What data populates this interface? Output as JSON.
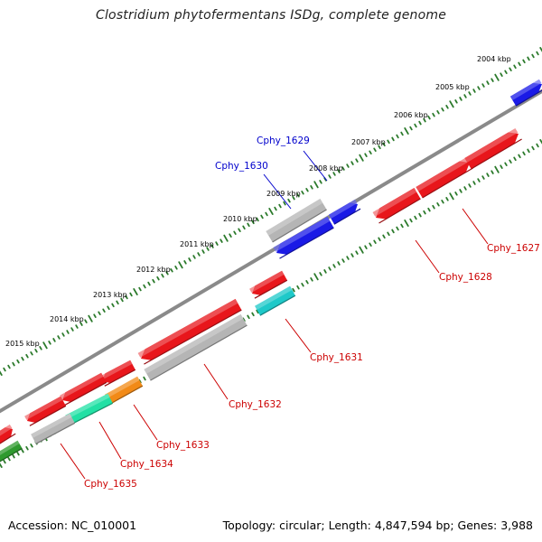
{
  "title": "Clostridium phytofermentans ISDg, complete genome",
  "footer": {
    "accession": "Accession: NC_010001",
    "summary": "Topology: circular; Length: 4,847,594 bp; Genes: 3,988"
  },
  "kbp_ticks": [
    "2004 kbp",
    "2005 kbp",
    "2006 kbp",
    "2007 kbp",
    "2008 kbp",
    "2009 kbp",
    "2010 kbp",
    "2011 kbp",
    "2012 kbp",
    "2013 kbp",
    "2014 kbp",
    "2015 kbp"
  ],
  "gene_labels": [
    "Cphy_1627",
    "Cphy_1628",
    "Cphy_1629",
    "Cphy_1630",
    "Cphy_1631",
    "Cphy_1632",
    "Cphy_1633",
    "Cphy_1634",
    "Cphy_1635"
  ],
  "colors": {
    "red": "#e8161b",
    "blue": "#1a1ae6",
    "grey": "#b5b5b5",
    "cyan": "#1ec9c9",
    "orange": "#f28a17",
    "teal": "#22e0a4",
    "green": "#2f9a2f",
    "backbone": "#8a8a8a",
    "tick": "#2b7a2b",
    "label_red": "#cc0000",
    "label_blue": "#0000cc"
  }
}
